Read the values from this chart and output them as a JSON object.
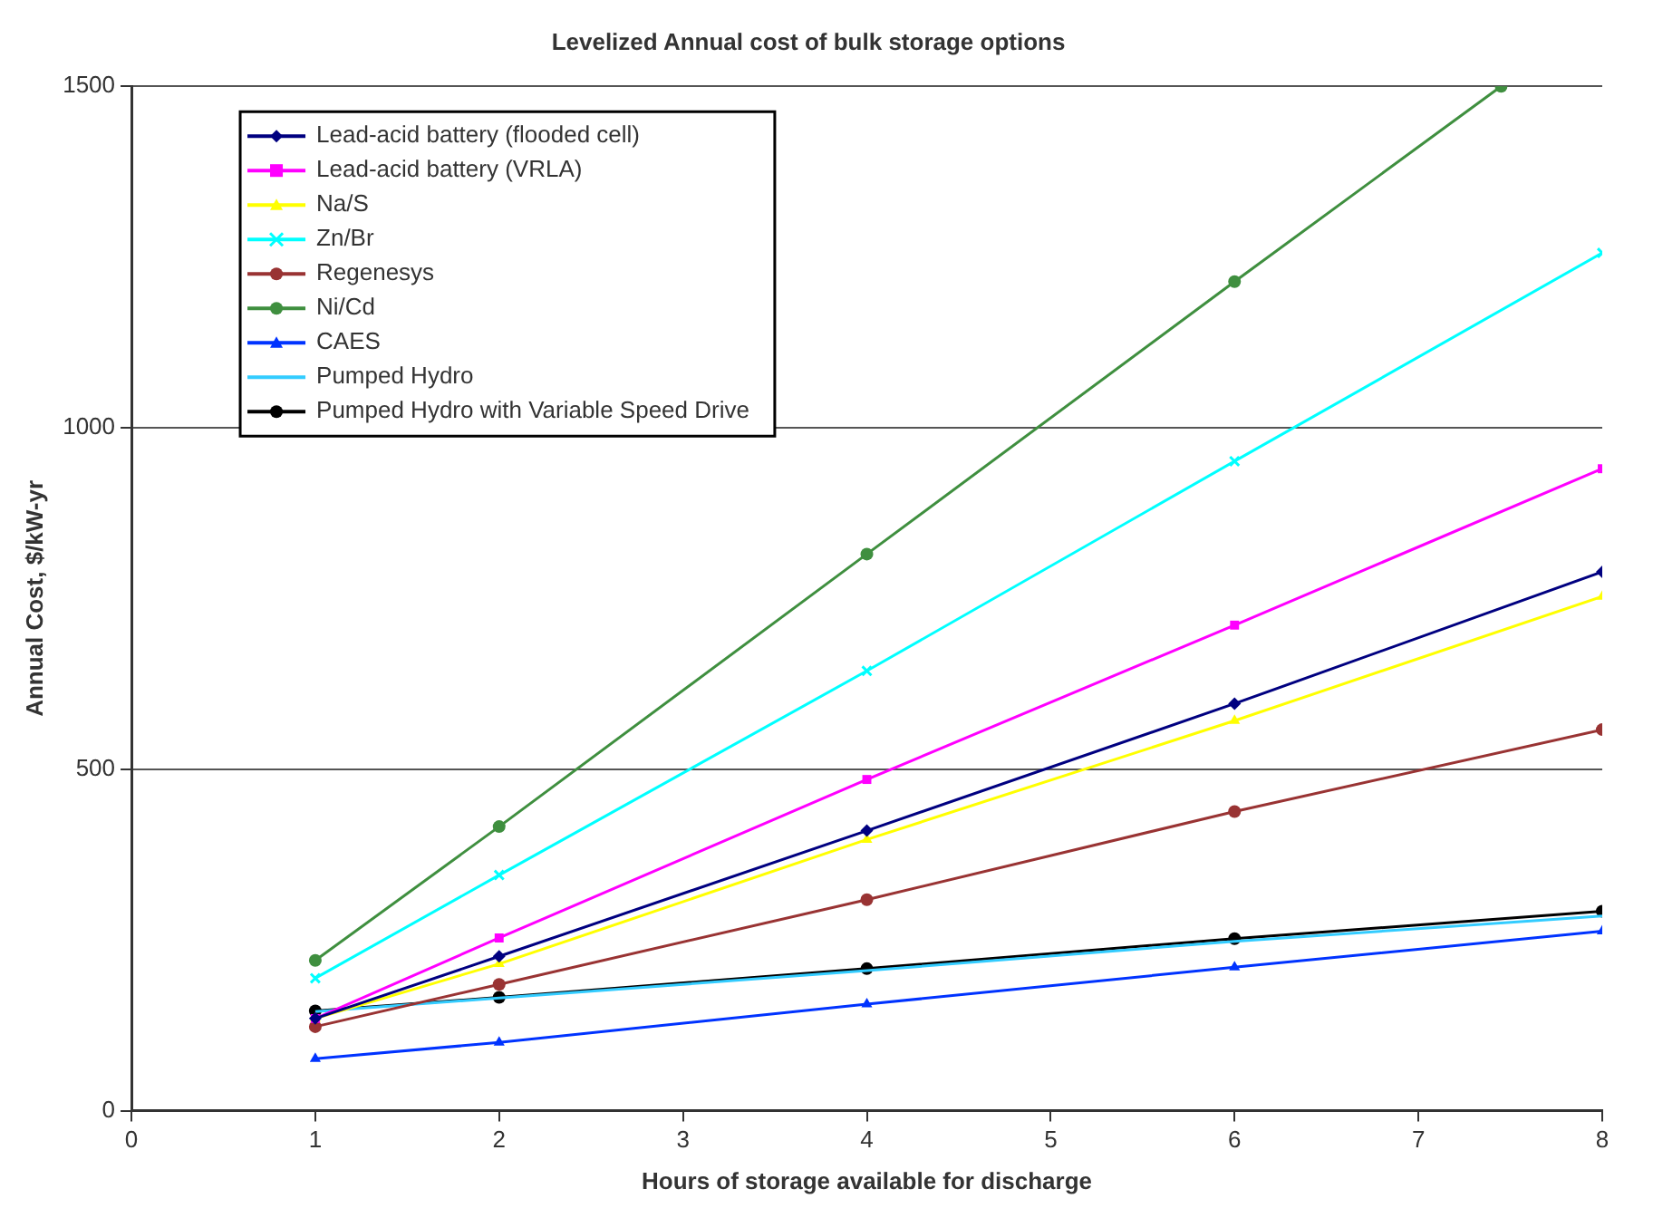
{
  "chart_data": {
    "type": "line",
    "title": "Levelized Annual cost of bulk storage options",
    "xlabel": "Hours of storage available for discharge",
    "ylabel": "Annual Cost, $/kW-yr",
    "x": [
      1,
      2,
      4,
      6,
      8
    ],
    "series": [
      {
        "name": "Lead-acid battery (flooded cell)",
        "color": "#000080",
        "marker": "diamond",
        "values": [
          135,
          226,
          410,
          596,
          789
        ]
      },
      {
        "name": "Lead-acid battery (VRLA)",
        "color": "#ff00ff",
        "marker": "square",
        "values": [
          135,
          253,
          485,
          711,
          940
        ]
      },
      {
        "name": "Na/S",
        "color": "#ffff00",
        "marker": "triangle",
        "values": [
          135,
          215,
          397,
          571,
          753
        ]
      },
      {
        "name": "Zn/Br",
        "color": "#00ffff",
        "marker": "cross",
        "values": [
          194,
          345,
          644,
          951,
          1256
        ]
      },
      {
        "name": "Regenesys",
        "color": "#993333",
        "marker": "circle",
        "values": [
          123,
          185,
          309,
          438,
          558
        ]
      },
      {
        "name": "Ni/Cd",
        "color": "#3f8f3f",
        "marker": "circle",
        "x": [
          1,
          2,
          4,
          6,
          7.45
        ],
        "values": [
          220,
          416,
          815,
          1214,
          1500
        ]
      },
      {
        "name": "CAES",
        "color": "#0033ff",
        "marker": "triangle",
        "values": [
          76,
          100,
          156,
          210,
          263
        ]
      },
      {
        "name": "Pumped Hydro",
        "color": "#33ccff",
        "marker": "none",
        "values": [
          145,
          165,
          205,
          248,
          285
        ]
      },
      {
        "name": "Pumped Hydro with Variable Speed Drive",
        "color": "#000000",
        "marker": "circle",
        "values": [
          146,
          166,
          208,
          252,
          292
        ]
      }
    ],
    "xlim": [
      0,
      8
    ],
    "xticks": [
      0,
      1,
      2,
      3,
      4,
      5,
      6,
      7,
      8
    ],
    "ylim": [
      0,
      1500
    ],
    "yticks": [
      0,
      500,
      1000,
      1500
    ],
    "grid": "y",
    "legend": "top left"
  }
}
